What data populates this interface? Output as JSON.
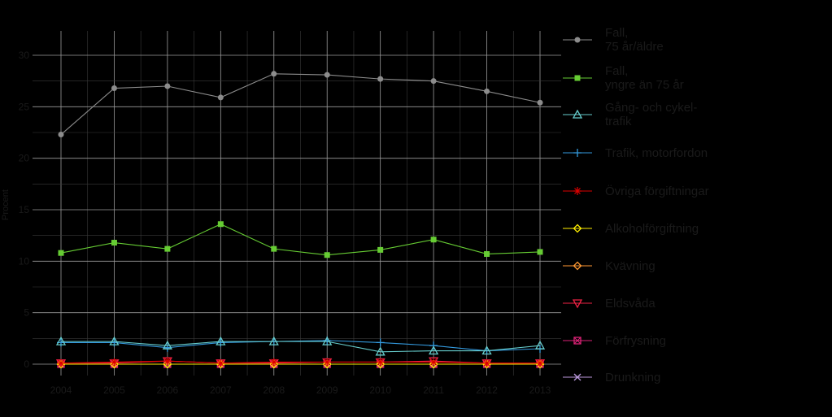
{
  "chart_data": {
    "type": "line",
    "title": "",
    "xlabel": "",
    "ylabel": "Procent",
    "x": [
      2004,
      2005,
      2006,
      2007,
      2008,
      2009,
      2010,
      2011,
      2012,
      2013
    ],
    "yticks": [
      0,
      5,
      10,
      15,
      20,
      25,
      30
    ],
    "ylim": [
      0,
      30
    ],
    "grid": true,
    "legend_position": "right",
    "series": [
      {
        "name": "Fall,\n75 år/äldre",
        "color": "#8c8c8c",
        "marker": "circle",
        "values": [
          22.3,
          26.8,
          27.0,
          25.9,
          28.2,
          28.1,
          27.7,
          27.5,
          26.5,
          25.4
        ]
      },
      {
        "name": "Fall,\nyngre än 75 år",
        "color": "#66cc33",
        "marker": "square",
        "values": [
          10.8,
          11.8,
          11.2,
          13.6,
          11.2,
          10.6,
          11.1,
          12.1,
          10.7,
          10.9
        ]
      },
      {
        "name": "Gång- och cykel-\ntrafik",
        "color": "#66cccc",
        "marker": "triangle",
        "values": [
          2.2,
          2.2,
          1.8,
          2.2,
          2.2,
          2.2,
          1.2,
          1.3,
          1.3,
          1.8
        ]
      },
      {
        "name": "Trafik, motorfordon",
        "color": "#3399dd",
        "marker": "plus",
        "values": [
          2.1,
          2.1,
          1.6,
          2.1,
          2.2,
          2.3,
          2.1,
          1.8,
          1.3,
          1.5
        ]
      },
      {
        "name": "Övriga förgiftningar",
        "color": "#dd0000",
        "marker": "star",
        "values": [
          0.1,
          0.2,
          0.3,
          0.1,
          0.2,
          0.2,
          0.2,
          0.2,
          0.1,
          0.1
        ]
      },
      {
        "name": "Alkoholförgiftning",
        "color": "#ffee00",
        "marker": "diamond",
        "values": [
          0.0,
          0.0,
          0.0,
          0.0,
          0.0,
          0.0,
          0.0,
          0.0,
          0.0,
          0.0
        ]
      },
      {
        "name": "Kvävning",
        "color": "#ff9933",
        "marker": "diamond",
        "values": [
          0.0,
          0.0,
          0.0,
          0.0,
          0.0,
          0.0,
          0.0,
          0.0,
          0.0,
          0.0
        ]
      },
      {
        "name": "Eldsvåda",
        "color": "#ee2244",
        "marker": "triangle-down",
        "values": [
          0.1,
          0.1,
          0.3,
          0.1,
          0.1,
          0.2,
          0.2,
          0.3,
          0.1,
          0.1
        ]
      },
      {
        "name": "Förfrysning",
        "color": "#dd2277",
        "marker": "square-x",
        "values": [
          0.0,
          0.0,
          0.0,
          0.0,
          0.0,
          0.0,
          0.0,
          0.0,
          0.0,
          0.0
        ]
      },
      {
        "name": "Drunkning",
        "color": "#bb99dd",
        "marker": "cross",
        "values": [
          0.0,
          0.0,
          0.0,
          0.0,
          0.0,
          0.0,
          0.0,
          0.0,
          0.0,
          0.0
        ]
      }
    ]
  }
}
